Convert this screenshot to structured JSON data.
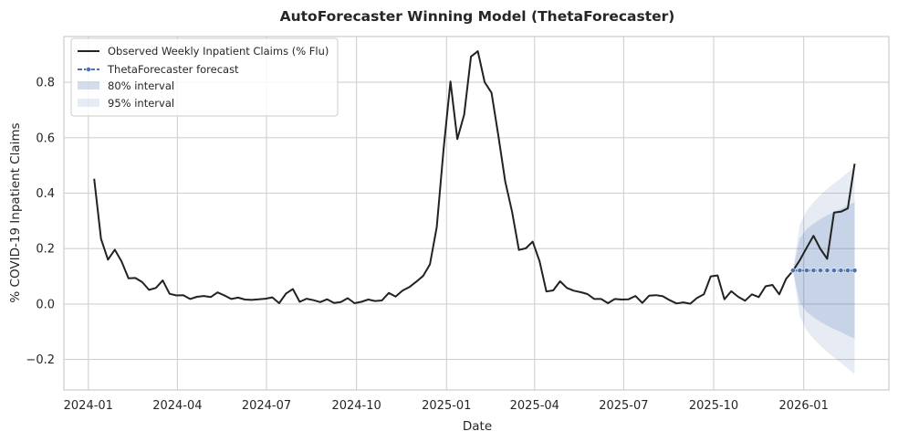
{
  "chart_data": {
    "type": "line",
    "title": "AutoForecaster Winning Model (ThetaForecaster)",
    "xlabel": "Date",
    "ylabel": "% COVID-19 Inpatient Claims",
    "xlim": [
      "2023-12-07",
      "2026-03-29"
    ],
    "ylim": [
      -0.31,
      0.965
    ],
    "grid": true,
    "legend_position": "top-left",
    "x_ticks": [
      {
        "date": "2024-01-01",
        "label": "2024-01"
      },
      {
        "date": "2024-04-01",
        "label": "2024-04"
      },
      {
        "date": "2024-07-01",
        "label": "2024-07"
      },
      {
        "date": "2024-10-01",
        "label": "2024-10"
      },
      {
        "date": "2025-01-01",
        "label": "2025-01"
      },
      {
        "date": "2025-04-01",
        "label": "2025-04"
      },
      {
        "date": "2025-07-01",
        "label": "2025-07"
      },
      {
        "date": "2025-10-01",
        "label": "2025-10"
      },
      {
        "date": "2026-01-01",
        "label": "2026-01"
      }
    ],
    "y_ticks": [
      {
        "value": -0.2,
        "label": "−0.2"
      },
      {
        "value": 0.0,
        "label": "0.0"
      },
      {
        "value": 0.2,
        "label": "0.2"
      },
      {
        "value": 0.4,
        "label": "0.4"
      },
      {
        "value": 0.6,
        "label": "0.6"
      },
      {
        "value": 0.8,
        "label": "0.8"
      }
    ],
    "colors": {
      "observed": "#222222",
      "forecast": "#4c72b0",
      "interval80": "#4c72b0",
      "interval95": "#4c72b0",
      "grid": "#d0d0d0",
      "frame": "#cccccc"
    },
    "legend": [
      {
        "label": "Observed Weekly Inpatient Claims (% Flu)",
        "kind": "line"
      },
      {
        "label": "ThetaForecaster forecast",
        "kind": "dashed-marker"
      },
      {
        "label": "80% interval",
        "kind": "band80"
      },
      {
        "label": "95% interval",
        "kind": "band95"
      }
    ],
    "observed": {
      "name": "Observed Weekly Inpatient Claims (% Flu)",
      "points": [
        [
          "2024-01-07",
          0.452
        ],
        [
          "2024-01-14",
          0.235
        ],
        [
          "2024-01-21",
          0.16
        ],
        [
          "2024-01-28",
          0.196
        ],
        [
          "2024-02-04",
          0.153
        ],
        [
          "2024-02-11",
          0.093
        ],
        [
          "2024-02-18",
          0.094
        ],
        [
          "2024-02-25",
          0.079
        ],
        [
          "2024-03-03",
          0.051
        ],
        [
          "2024-03-10",
          0.058
        ],
        [
          "2024-03-17",
          0.085
        ],
        [
          "2024-03-24",
          0.037
        ],
        [
          "2024-03-31",
          0.031
        ],
        [
          "2024-04-07",
          0.032
        ],
        [
          "2024-04-14",
          0.018
        ],
        [
          "2024-04-21",
          0.026
        ],
        [
          "2024-04-28",
          0.029
        ],
        [
          "2024-05-05",
          0.025
        ],
        [
          "2024-05-12",
          0.042
        ],
        [
          "2024-05-19",
          0.031
        ],
        [
          "2024-05-26",
          0.018
        ],
        [
          "2024-06-02",
          0.023
        ],
        [
          "2024-06-09",
          0.016
        ],
        [
          "2024-06-16",
          0.015
        ],
        [
          "2024-06-23",
          0.017
        ],
        [
          "2024-06-30",
          0.019
        ],
        [
          "2024-07-07",
          0.024
        ],
        [
          "2024-07-14",
          0.003
        ],
        [
          "2024-07-21",
          0.038
        ],
        [
          "2024-07-28",
          0.054
        ],
        [
          "2024-08-04",
          0.008
        ],
        [
          "2024-08-11",
          0.019
        ],
        [
          "2024-08-18",
          0.014
        ],
        [
          "2024-08-25",
          0.007
        ],
        [
          "2024-09-01",
          0.017
        ],
        [
          "2024-09-08",
          0.004
        ],
        [
          "2024-09-15",
          0.007
        ],
        [
          "2024-09-22",
          0.021
        ],
        [
          "2024-09-29",
          0.003
        ],
        [
          "2024-10-06",
          0.008
        ],
        [
          "2024-10-13",
          0.016
        ],
        [
          "2024-10-20",
          0.011
        ],
        [
          "2024-10-27",
          0.013
        ],
        [
          "2024-11-03",
          0.04
        ],
        [
          "2024-11-10",
          0.027
        ],
        [
          "2024-11-17",
          0.048
        ],
        [
          "2024-11-24",
          0.061
        ],
        [
          "2024-12-01",
          0.08
        ],
        [
          "2024-12-08",
          0.101
        ],
        [
          "2024-12-15",
          0.143
        ],
        [
          "2024-12-22",
          0.278
        ],
        [
          "2024-12-29",
          0.56
        ],
        [
          "2025-01-05",
          0.803
        ],
        [
          "2025-01-12",
          0.595
        ],
        [
          "2025-01-19",
          0.683
        ],
        [
          "2025-01-26",
          0.893
        ],
        [
          "2025-02-02",
          0.912
        ],
        [
          "2025-02-09",
          0.8
        ],
        [
          "2025-02-16",
          0.762
        ],
        [
          "2025-02-23",
          0.607
        ],
        [
          "2025-03-02",
          0.442
        ],
        [
          "2025-03-09",
          0.333
        ],
        [
          "2025-03-16",
          0.195
        ],
        [
          "2025-03-23",
          0.201
        ],
        [
          "2025-03-30",
          0.225
        ],
        [
          "2025-04-06",
          0.155
        ],
        [
          "2025-04-13",
          0.045
        ],
        [
          "2025-04-20",
          0.049
        ],
        [
          "2025-04-27",
          0.082
        ],
        [
          "2025-05-04",
          0.058
        ],
        [
          "2025-05-11",
          0.048
        ],
        [
          "2025-05-18",
          0.043
        ],
        [
          "2025-05-25",
          0.036
        ],
        [
          "2025-06-01",
          0.018
        ],
        [
          "2025-06-08",
          0.018
        ],
        [
          "2025-06-15",
          0.003
        ],
        [
          "2025-06-22",
          0.018
        ],
        [
          "2025-06-29",
          0.016
        ],
        [
          "2025-07-06",
          0.017
        ],
        [
          "2025-07-13",
          0.029
        ],
        [
          "2025-07-20",
          0.004
        ],
        [
          "2025-07-27",
          0.03
        ],
        [
          "2025-08-03",
          0.032
        ],
        [
          "2025-08-10",
          0.028
        ],
        [
          "2025-08-17",
          0.014
        ],
        [
          "2025-08-24",
          0.002
        ],
        [
          "2025-08-31",
          0.006
        ],
        [
          "2025-09-07",
          0.001
        ],
        [
          "2025-09-14",
          0.022
        ],
        [
          "2025-09-21",
          0.035
        ],
        [
          "2025-09-28",
          0.1
        ],
        [
          "2025-10-05",
          0.103
        ],
        [
          "2025-10-12",
          0.017
        ],
        [
          "2025-10-19",
          0.046
        ],
        [
          "2025-10-26",
          0.026
        ],
        [
          "2025-11-02",
          0.012
        ],
        [
          "2025-11-09",
          0.035
        ],
        [
          "2025-11-16",
          0.025
        ],
        [
          "2025-11-23",
          0.064
        ],
        [
          "2025-11-30",
          0.069
        ],
        [
          "2025-12-07",
          0.035
        ],
        [
          "2025-12-14",
          0.091
        ],
        [
          "2025-12-21",
          0.12
        ],
        [
          "2025-12-28",
          0.158
        ],
        [
          "2026-01-04",
          0.203
        ],
        [
          "2026-01-11",
          0.246
        ],
        [
          "2026-01-18",
          0.199
        ],
        [
          "2026-01-25",
          0.163
        ],
        [
          "2026-02-01",
          0.33
        ],
        [
          "2026-02-08",
          0.333
        ],
        [
          "2026-02-15",
          0.345
        ],
        [
          "2026-02-22",
          0.506
        ]
      ]
    },
    "forecast": {
      "name": "ThetaForecaster forecast",
      "dates": [
        "2025-12-21",
        "2025-12-28",
        "2026-01-04",
        "2026-01-11",
        "2026-01-18",
        "2026-01-25",
        "2026-02-01",
        "2026-02-08",
        "2026-02-15",
        "2026-02-22"
      ],
      "values": [
        0.121,
        0.121,
        0.121,
        0.121,
        0.121,
        0.121,
        0.121,
        0.121,
        0.121,
        0.121
      ],
      "lower80": [
        0.121,
        0.005,
        -0.028,
        -0.048,
        -0.064,
        -0.078,
        -0.09,
        -0.101,
        -0.114,
        -0.125
      ],
      "upper80": [
        0.121,
        0.237,
        0.27,
        0.29,
        0.306,
        0.32,
        0.332,
        0.343,
        0.356,
        0.367
      ],
      "lower95": [
        0.121,
        -0.045,
        -0.095,
        -0.125,
        -0.15,
        -0.173,
        -0.193,
        -0.212,
        -0.233,
        -0.253
      ],
      "upper95": [
        0.121,
        0.287,
        0.337,
        0.367,
        0.392,
        0.415,
        0.435,
        0.454,
        0.475,
        0.495
      ]
    }
  }
}
